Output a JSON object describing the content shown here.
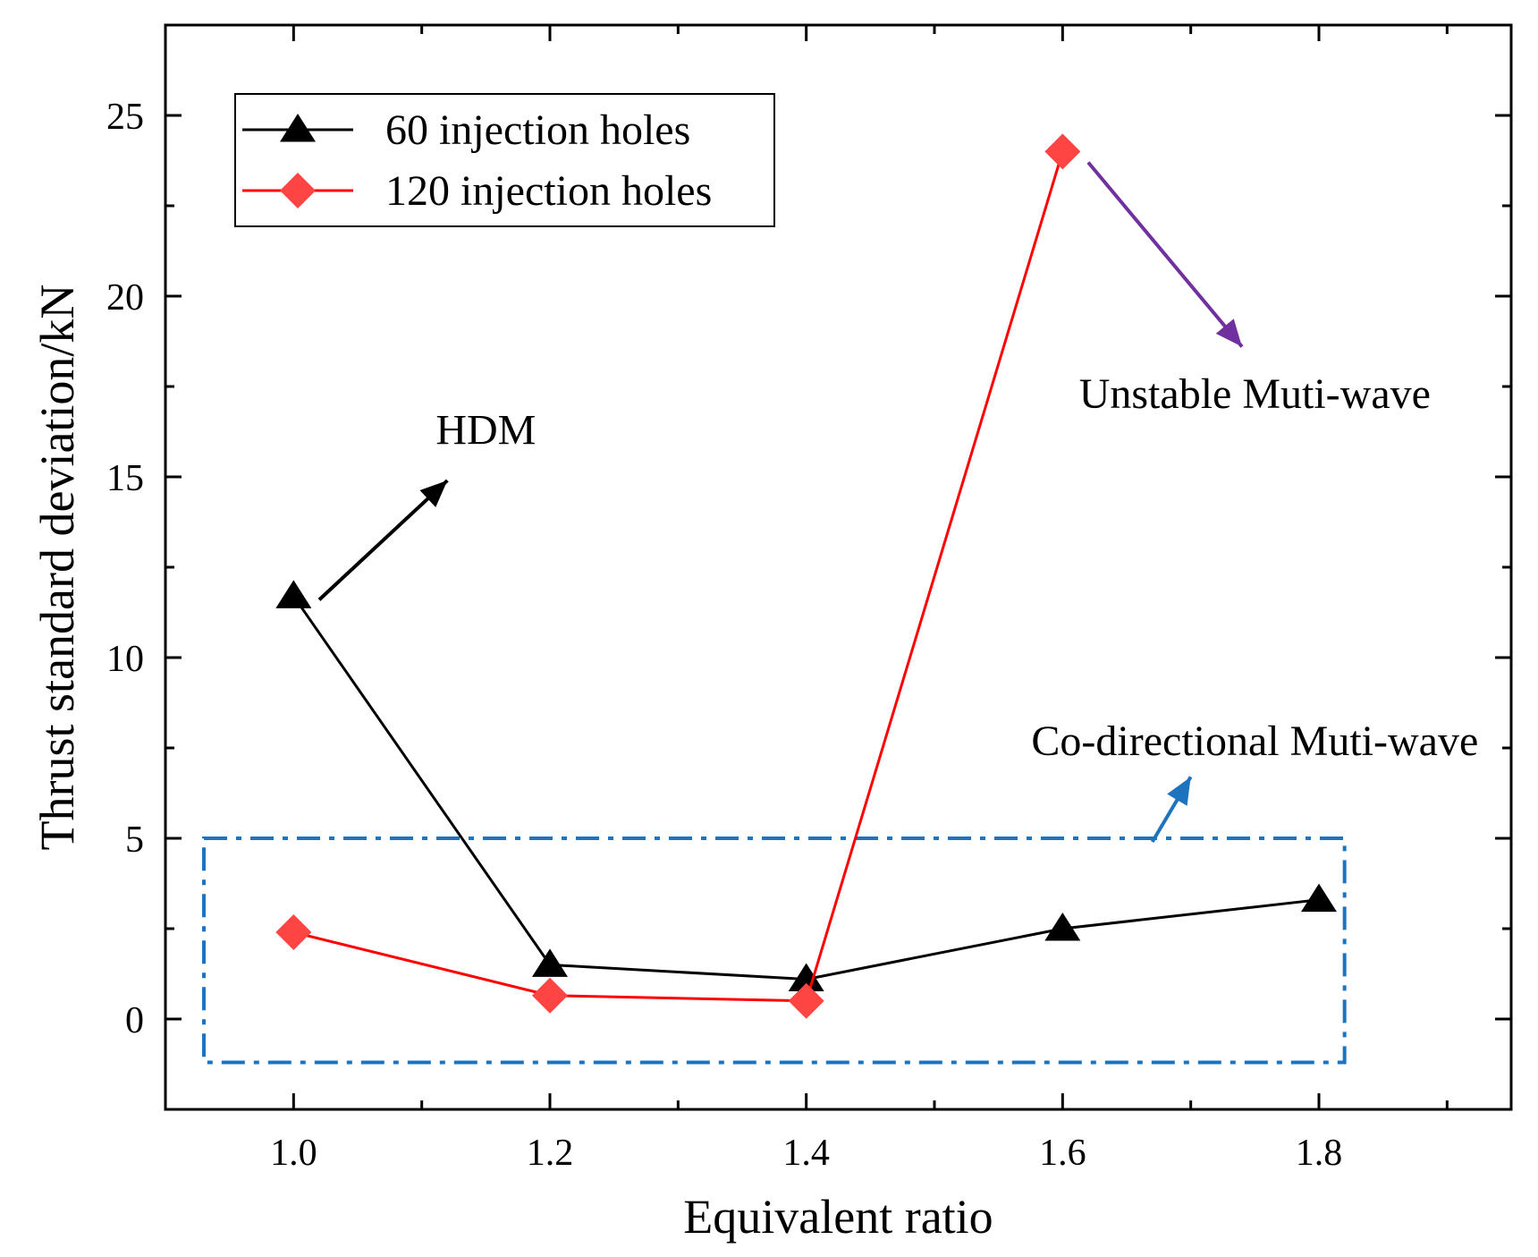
{
  "chart_data": {
    "type": "line",
    "xlabel": "Equivalent ratio",
    "ylabel": "Thrust standard deviation/kN",
    "xlim": [
      0.9,
      1.95
    ],
    "ylim": [
      -2.5,
      27.5
    ],
    "x_ticks": [
      1.0,
      1.2,
      1.4,
      1.6,
      1.8
    ],
    "x_tick_labels": [
      "1.0",
      "1.2",
      "1.4",
      "1.6",
      "1.8"
    ],
    "y_ticks": [
      0,
      5,
      10,
      15,
      20,
      25
    ],
    "y_tick_labels": [
      "0",
      "5",
      "10",
      "15",
      "20",
      "25"
    ],
    "grid": false,
    "legend_position": "top-left",
    "series": [
      {
        "name": "60 injection holes",
        "color": "#000000",
        "marker": "triangle",
        "x": [
          1.0,
          1.2,
          1.4,
          1.6,
          1.8
        ],
        "y": [
          11.7,
          1.5,
          1.1,
          2.5,
          3.3
        ]
      },
      {
        "name": "120 injection holes",
        "color": "#ff0000",
        "marker_color": "#ff4444",
        "marker": "diamond",
        "x": [
          1.0,
          1.2,
          1.4,
          1.6
        ],
        "y": [
          2.4,
          0.65,
          0.5,
          24.0
        ]
      }
    ],
    "annotations": [
      {
        "text": "HDM",
        "color": "#000000",
        "text_at": [
          1.15,
          15.9
        ],
        "arrow_from": [
          1.02,
          11.6
        ],
        "arrow_to": [
          1.12,
          14.9
        ]
      },
      {
        "text": "Unstable Muti-wave",
        "color": "#7030a0",
        "text_at": [
          1.75,
          16.9
        ],
        "arrow_from": [
          1.62,
          23.7
        ],
        "arrow_to": [
          1.74,
          18.6
        ]
      },
      {
        "text": "Co-directional Muti-wave",
        "color": "#1e73be",
        "text_at": [
          1.75,
          7.3
        ],
        "arrow_from": [
          1.67,
          4.9
        ],
        "arrow_to": [
          1.7,
          6.7
        ]
      }
    ],
    "highlight_box": {
      "color": "#1e73be",
      "style": "dash-dot",
      "x_range": [
        0.93,
        1.82
      ],
      "y_range": [
        -1.2,
        5.0
      ]
    }
  }
}
